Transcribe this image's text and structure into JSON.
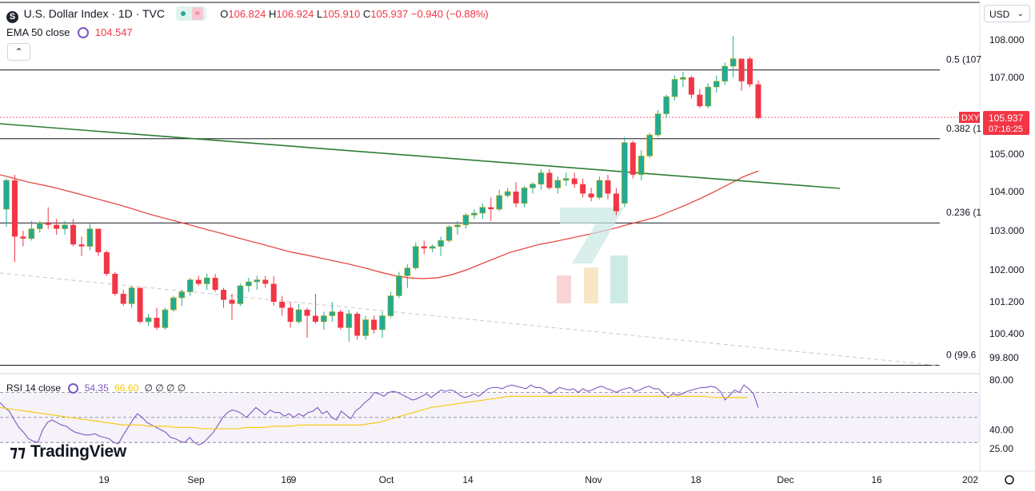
{
  "header": {
    "symbol_icon": "S",
    "title": "U.S. Dollar Index · 1D · TVC",
    "ohlc": {
      "o_label": "O",
      "o": "106.824",
      "h_label": "H",
      "h": "106.924",
      "l_label": "L",
      "l": "105.910",
      "c_label": "C",
      "c": "105.937",
      "change": "−0.940 (−0.88%)"
    },
    "ema_label": "EMA 50 close",
    "ema_value": "104.547",
    "currency": "USD"
  },
  "chart_data": {
    "type": "candlestick",
    "price_axis": {
      "ticks": [
        "108.000",
        "107.000",
        "105.000",
        "104.000",
        "103.000",
        "102.000",
        "101.200",
        "100.400",
        "99.800"
      ]
    },
    "time_axis": {
      "ticks": [
        "19",
        "Sep",
        "9",
        "16",
        "Oct",
        "14",
        "Nov",
        "18",
        "Dec",
        "16",
        "202"
      ]
    },
    "last_price": {
      "symbol": "DXY",
      "value": "105.937",
      "countdown": "07:16:25"
    },
    "fib_levels": [
      {
        "label": "0.5 (107",
        "price": 107.2
      },
      {
        "label": "0.382 (1",
        "price": 105.4
      },
      {
        "label": "0.236 (1",
        "price": 103.2
      },
      {
        "label": "0 (99.6",
        "price": 99.61
      }
    ],
    "candles": [
      [
        103.55,
        104.35,
        103.1,
        104.3
      ],
      [
        104.3,
        104.45,
        102.2,
        102.85
      ],
      [
        102.85,
        103.0,
        102.6,
        102.8
      ],
      [
        102.8,
        103.25,
        102.75,
        103.05
      ],
      [
        103.05,
        103.25,
        102.95,
        103.2
      ],
      [
        103.2,
        103.6,
        103.05,
        103.15
      ],
      [
        103.15,
        103.3,
        102.9,
        103.05
      ],
      [
        103.05,
        103.25,
        102.9,
        103.15
      ],
      [
        103.15,
        103.3,
        102.6,
        102.65
      ],
      [
        102.65,
        102.85,
        102.35,
        102.6
      ],
      [
        102.6,
        103.2,
        102.5,
        103.05
      ],
      [
        103.05,
        103.05,
        102.35,
        102.45
      ],
      [
        102.45,
        102.5,
        101.85,
        101.9
      ],
      [
        101.9,
        101.95,
        101.35,
        101.4
      ],
      [
        101.4,
        101.5,
        101.1,
        101.15
      ],
      [
        101.15,
        101.6,
        101.05,
        101.55
      ],
      [
        101.55,
        101.55,
        100.65,
        100.7
      ],
      [
        100.7,
        100.9,
        100.6,
        100.8
      ],
      [
        100.8,
        101.05,
        100.5,
        100.55
      ],
      [
        100.55,
        101.05,
        100.5,
        101.0
      ],
      [
        101.0,
        101.35,
        100.95,
        101.3
      ],
      [
        101.3,
        101.5,
        101.1,
        101.45
      ],
      [
        101.45,
        101.8,
        101.35,
        101.75
      ],
      [
        101.75,
        101.85,
        101.6,
        101.65
      ],
      [
        101.65,
        101.9,
        101.5,
        101.8
      ],
      [
        101.8,
        101.9,
        101.45,
        101.5
      ],
      [
        101.5,
        101.55,
        101.05,
        101.25
      ],
      [
        101.25,
        101.4,
        100.75,
        101.15
      ],
      [
        101.15,
        101.65,
        101.1,
        101.6
      ],
      [
        101.6,
        101.8,
        101.45,
        101.7
      ],
      [
        101.7,
        101.85,
        101.5,
        101.75
      ],
      [
        101.75,
        101.85,
        101.55,
        101.65
      ],
      [
        101.65,
        101.85,
        101.1,
        101.2
      ],
      [
        101.2,
        101.35,
        100.85,
        101.05
      ],
      [
        101.05,
        101.2,
        100.55,
        100.7
      ],
      [
        100.7,
        101.15,
        100.65,
        101.0
      ],
      [
        101.0,
        101.05,
        100.3,
        100.85
      ],
      [
        100.85,
        101.4,
        100.65,
        100.7
      ],
      [
        100.7,
        100.95,
        100.5,
        100.85
      ],
      [
        100.85,
        101.2,
        100.7,
        100.95
      ],
      [
        100.95,
        101.0,
        100.5,
        100.55
      ],
      [
        100.55,
        101.0,
        100.2,
        100.9
      ],
      [
        100.9,
        100.95,
        100.25,
        100.35
      ],
      [
        100.35,
        100.85,
        100.25,
        100.75
      ],
      [
        100.75,
        100.85,
        100.4,
        100.5
      ],
      [
        100.5,
        100.95,
        100.3,
        100.85
      ],
      [
        100.85,
        101.45,
        100.8,
        101.35
      ],
      [
        101.35,
        101.95,
        101.3,
        101.85
      ],
      [
        101.85,
        102.15,
        101.55,
        102.05
      ],
      [
        102.05,
        102.7,
        102.0,
        102.6
      ],
      [
        102.6,
        102.75,
        102.4,
        102.55
      ],
      [
        102.55,
        102.65,
        102.45,
        102.6
      ],
      [
        102.6,
        102.85,
        102.35,
        102.75
      ],
      [
        102.75,
        103.15,
        102.7,
        103.1
      ],
      [
        103.1,
        103.25,
        102.9,
        103.15
      ],
      [
        103.15,
        103.45,
        103.05,
        103.4
      ],
      [
        103.4,
        103.55,
        103.3,
        103.45
      ],
      [
        103.45,
        103.7,
        103.3,
        103.6
      ],
      [
        103.6,
        103.85,
        103.25,
        103.55
      ],
      [
        103.55,
        104.05,
        103.5,
        103.9
      ],
      [
        103.9,
        104.1,
        103.85,
        104.0
      ],
      [
        104.0,
        104.25,
        103.6,
        103.7
      ],
      [
        103.7,
        104.15,
        103.6,
        104.1
      ],
      [
        104.1,
        104.25,
        103.95,
        104.2
      ],
      [
        104.2,
        104.6,
        104.05,
        104.5
      ],
      [
        104.5,
        104.6,
        104.05,
        104.1
      ],
      [
        104.1,
        104.4,
        103.95,
        104.3
      ],
      [
        104.3,
        104.5,
        104.15,
        104.35
      ],
      [
        104.35,
        104.5,
        104.1,
        104.2
      ],
      [
        104.2,
        104.35,
        103.85,
        103.95
      ],
      [
        103.95,
        104.1,
        103.75,
        103.85
      ],
      [
        103.85,
        104.4,
        103.8,
        104.3
      ],
      [
        104.3,
        104.45,
        103.8,
        103.95
      ],
      [
        103.95,
        104.1,
        103.4,
        103.5
      ],
      [
        103.7,
        105.45,
        103.6,
        105.3
      ],
      [
        105.3,
        105.35,
        104.35,
        104.45
      ],
      [
        104.45,
        105.1,
        104.3,
        104.95
      ],
      [
        104.95,
        105.55,
        104.9,
        105.5
      ],
      [
        105.5,
        106.15,
        105.45,
        106.05
      ],
      [
        106.05,
        106.55,
        105.95,
        106.5
      ],
      [
        106.5,
        107.05,
        106.4,
        106.95
      ],
      [
        106.95,
        107.15,
        106.75,
        107.0
      ],
      [
        107.0,
        107.05,
        106.45,
        106.55
      ],
      [
        106.55,
        106.7,
        106.2,
        106.25
      ],
      [
        106.25,
        106.85,
        106.2,
        106.75
      ],
      [
        106.75,
        107.05,
        106.6,
        106.9
      ],
      [
        106.9,
        107.4,
        106.8,
        107.3
      ],
      [
        107.3,
        108.1,
        107.0,
        107.5
      ],
      [
        107.5,
        107.5,
        106.65,
        106.9
      ],
      [
        107.5,
        107.55,
        106.75,
        106.82
      ],
      [
        106.82,
        106.92,
        105.91,
        105.94
      ]
    ],
    "ema50": [
      104.45,
      104.35,
      104.25,
      104.17,
      104.08,
      103.98,
      103.88,
      103.78,
      103.68,
      103.57,
      103.45,
      103.35,
      103.25,
      103.15,
      103.05,
      102.95,
      102.85,
      102.75,
      102.65,
      102.55,
      102.45,
      102.38,
      102.3,
      102.22,
      102.14,
      102.05,
      101.95,
      101.86,
      101.8,
      101.78,
      101.8,
      101.88,
      102.0,
      102.15,
      102.3,
      102.45,
      102.55,
      102.65,
      102.72,
      102.8,
      102.88,
      102.96,
      103.05,
      103.15,
      103.25,
      103.35,
      103.5,
      103.65,
      103.82,
      104.0,
      104.2,
      104.4,
      104.55
    ],
    "indicator": {
      "label": "RSI 14 close",
      "values_text": [
        "54.35",
        "66.60"
      ],
      "extra": "∅ ∅ ∅ ∅",
      "axis_ticks": [
        "80.00",
        "40.00",
        "25.00"
      ],
      "rsi": [
        62,
        58,
        55,
        48,
        42,
        38,
        33,
        31,
        30,
        40,
        46,
        48,
        46,
        44,
        43,
        40,
        38,
        37,
        36,
        36,
        37,
        35,
        34,
        33,
        30,
        29,
        36,
        42,
        48,
        53,
        50,
        46,
        44,
        42,
        40,
        38,
        34,
        33,
        31,
        30,
        34,
        30,
        28,
        30,
        34,
        38,
        44,
        50,
        54,
        56,
        55,
        53,
        50,
        54,
        58,
        55,
        52,
        56,
        54,
        54,
        51,
        53,
        50,
        53,
        51,
        54,
        55,
        58,
        53,
        55,
        50,
        48,
        55,
        52,
        49,
        55,
        58,
        62,
        65,
        70,
        69,
        67,
        70,
        71,
        70,
        68,
        66,
        64,
        65,
        67,
        69,
        66,
        69,
        72,
        71,
        72,
        71,
        68,
        66,
        67,
        69,
        67,
        70,
        73,
        74,
        74,
        73,
        75,
        76,
        75,
        74,
        73,
        76,
        74,
        74,
        72,
        69,
        71,
        74,
        73,
        72,
        73,
        70,
        73,
        71,
        72,
        74,
        75,
        73,
        72,
        70,
        72,
        73,
        74,
        71,
        72,
        74,
        75,
        73,
        73,
        69,
        66,
        69,
        68,
        69,
        71,
        72,
        73,
        74,
        74,
        75,
        74,
        71,
        64,
        68,
        72,
        70,
        76,
        73,
        69,
        58
      ],
      "rsi_ma": [
        58,
        57,
        56,
        55,
        54,
        53,
        52,
        51,
        50,
        49,
        48,
        47,
        46,
        45,
        44,
        44,
        44,
        43,
        43,
        43,
        42,
        42,
        42,
        41,
        41,
        41,
        41,
        41,
        42,
        42,
        42,
        43,
        43,
        43,
        44,
        44,
        44,
        44,
        44,
        44,
        44,
        44,
        45,
        46,
        48,
        50,
        52,
        54,
        56,
        58,
        59,
        60,
        61,
        62,
        63,
        64,
        65,
        66,
        67,
        67,
        67,
        67,
        67,
        67,
        67,
        67,
        67,
        67,
        67,
        67,
        67,
        67,
        67,
        67,
        67,
        67,
        67,
        67,
        67,
        67,
        67,
        66,
        66,
        66,
        66,
        66
      ]
    }
  }
}
